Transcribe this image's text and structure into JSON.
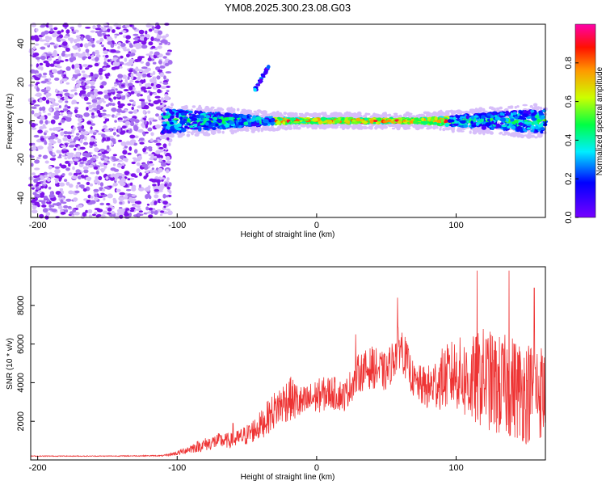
{
  "title": "YM08.2025.300.23.08.G03",
  "chart_data": [
    {
      "type": "heatmap",
      "title": "YM08.2025.300.23.08.G03",
      "xlabel": "Height of straight line (km)",
      "ylabel": "Frequency (Hz)",
      "xlim": [
        -205,
        164
      ],
      "ylim": [
        -50,
        50
      ],
      "x_ticks": [
        -200,
        -100,
        0,
        100
      ],
      "y_ticks": [
        -40,
        -20,
        0,
        20,
        40
      ],
      "colorbar": {
        "label": "Normalized spectral amplitude",
        "range": [
          0,
          1
        ],
        "ticks": [
          0.0,
          0.2,
          0.4,
          0.6,
          0.8
        ],
        "colormap": "rainbow (purple → blue → cyan → green → yellow → red → magenta)"
      },
      "features": [
        {
          "name": "noise region",
          "x_range": [
            -205,
            -105
          ],
          "freq_range": [
            -50,
            50
          ],
          "amplitude": "0.05-0.2"
        },
        {
          "name": "signal band",
          "x_range": [
            -110,
            164
          ],
          "center_freq": 0,
          "half_width_hz": [
            6,
            1,
            1,
            6
          ],
          "amplitude": "0.3-0.95"
        },
        {
          "name": "harmonic trace",
          "x_range": [
            -45,
            -33
          ],
          "freq_range": [
            15,
            30
          ]
        }
      ]
    },
    {
      "type": "line",
      "xlabel": "Height of straight line (km)",
      "ylabel": "SNR (10 * v/v)",
      "xlim": [
        -205,
        164
      ],
      "ylim": [
        0,
        10000
      ],
      "x_ticks": [
        -200,
        -100,
        0,
        100
      ],
      "y_ticks": [
        2000,
        4000,
        6000,
        8000
      ],
      "series": [
        {
          "name": "SNR",
          "color": "#ee3333",
          "x": [
            -205,
            -190,
            -170,
            -150,
            -130,
            -110,
            -100,
            -90,
            -80,
            -70,
            -60,
            -50,
            -40,
            -30,
            -20,
            -10,
            0,
            10,
            20,
            30,
            40,
            50,
            60,
            70,
            80,
            90,
            100,
            110,
            120,
            130,
            140,
            150,
            160,
            164
          ],
          "y": [
            200,
            200,
            200,
            200,
            210,
            220,
            350,
            600,
            800,
            1000,
            1000,
            1300,
            1800,
            2600,
            3200,
            2900,
            3300,
            3500,
            3300,
            4500,
            4800,
            4500,
            6000,
            4000,
            3700,
            4200,
            4500,
            4000,
            4300,
            3800,
            3800,
            3500,
            3600,
            3400
          ],
          "fluctuation": [
            20,
            20,
            20,
            20,
            25,
            30,
            120,
            250,
            350,
            400,
            400,
            550,
            750,
            1000,
            1200,
            900,
            900,
            900,
            800,
            1000,
            1100,
            1000,
            1200,
            900,
            1200,
            1600,
            1900,
            2300,
            2600,
            2700,
            2700,
            2700,
            2600,
            2500
          ],
          "peaks": [
            {
              "x": -60,
              "y": 1900
            },
            {
              "x": 28,
              "y": 6500
            },
            {
              "x": 58,
              "y": 8400
            },
            {
              "x": 115,
              "y": 9800
            },
            {
              "x": 138,
              "y": 9800
            },
            {
              "x": 156,
              "y": 8900
            }
          ]
        }
      ]
    }
  ]
}
